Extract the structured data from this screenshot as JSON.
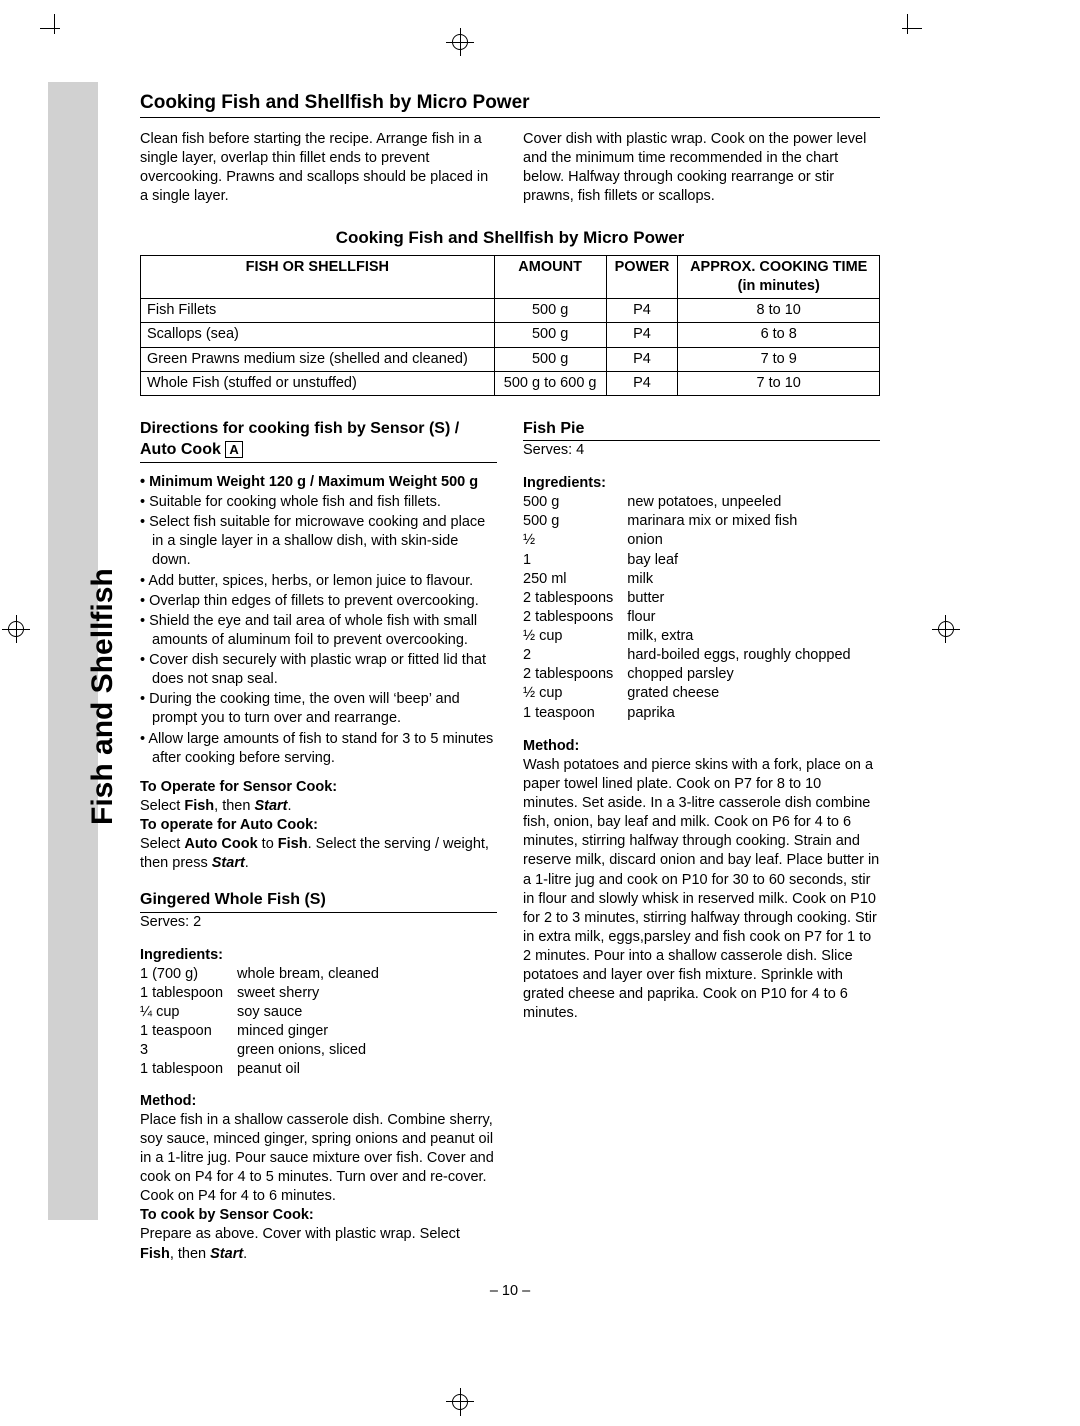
{
  "sidebar_label": "Fish and Shellfish",
  "page_number": "– 10 –",
  "section_title": "Cooking Fish and Shellfish by Micro Power",
  "intro_left": "Clean fish before starting the recipe. Arrange fish in a single layer, overlap thin fillet ends to prevent overcooking. Prawns and scallops should be placed in a single layer.",
  "intro_right": "Cover dish with plastic wrap. Cook on the power level and the minimum time recommended in the chart below. Halfway through cooking rearrange or stir prawns, fish fillets or scallops.",
  "table_title": "Cooking Fish and Shellfish by Micro Power",
  "table": {
    "headers": [
      "FISH OR SHELLFISH",
      "AMOUNT",
      "POWER",
      "APPROX. COOKING TIME (in minutes)"
    ],
    "rows": [
      [
        "Fish Fillets",
        "500 g",
        "P4",
        "8 to 10"
      ],
      [
        "Scallops (sea)",
        "500 g",
        "P4",
        "6 to 8"
      ],
      [
        "Green Prawns medium size (shelled and cleaned)",
        "500 g",
        "P4",
        "7 to 9"
      ],
      [
        "Whole Fish (stuffed or unstuffed)",
        "500 g to 600 g",
        "P4",
        "7 to 10"
      ]
    ]
  },
  "directions_heading": "Directions for cooking fish by Sensor (S) / Auto Cook ",
  "directions_badge": "A",
  "weight_line": "• Minimum Weight 120 g / Maximum Weight 500 g",
  "bullets": [
    "Suitable for cooking whole fish and fish fillets.",
    "Select fish suitable for microwave cooking and place in a single layer in a shallow dish, with skin-side down.",
    "Add butter, spices, herbs, or lemon juice to flavour.",
    "Overlap thin edges of fillets to prevent overcooking.",
    "Shield the eye and tail area of whole fish with small amounts of aluminum foil to prevent overcooking.",
    "Cover dish securely with plastic wrap or fitted lid that does not snap seal.",
    "During the cooking time, the oven will ‘beep’ and prompt you to turn over and rearrange.",
    "Allow large amounts of fish to stand for 3 to 5 minutes after cooking before serving."
  ],
  "operate_sensor_label": "To Operate for Sensor Cook:",
  "operate_sensor_text_pre": "Select ",
  "operate_sensor_fish": "Fish",
  "operate_sensor_mid": ", then ",
  "operate_sensor_start": "Start",
  "operate_sensor_post": ".",
  "operate_auto_label": "To operate for Auto Cook:",
  "operate_auto_text_pre": "Select ",
  "operate_auto_ac": "Auto Cook",
  "operate_auto_mid": " to ",
  "operate_auto_fish": "Fish",
  "operate_auto_post": ". Select the serving / weight, then press ",
  "operate_auto_start": "Start",
  "operate_auto_end": ".",
  "recipe1": {
    "title": "Gingered Whole Fish (S)",
    "serves": "Serves: 2",
    "ing_label": "Ingredients:",
    "ingredients": [
      [
        "1  (700 g)",
        "whole bream, cleaned"
      ],
      [
        "1 tablespoon",
        "sweet sherry"
      ],
      [
        "¼ cup",
        "soy sauce"
      ],
      [
        "1 teaspoon",
        "minced ginger"
      ],
      [
        "3",
        "green onions, sliced"
      ],
      [
        "1 tablespoon",
        "peanut oil"
      ]
    ],
    "method_label": "Method:",
    "method": "Place fish in a shallow casserole dish. Combine sherry, soy sauce, minced ginger, spring onions and peanut oil in a 1-litre jug. Pour sauce mixture over fish. Cover and cook on P4 for 4 to 5 minutes. Turn over and re-cover. Cook on P4 for 4 to 6 minutes.",
    "sensor_label": "To cook by Sensor Cook:",
    "sensor_text_pre": "Prepare as above. Cover with plastic wrap. Select ",
    "sensor_fish": "Fish",
    "sensor_mid": ", then ",
    "sensor_start": "Start",
    "sensor_post": "."
  },
  "recipe2": {
    "title": "Fish Pie",
    "serves": "Serves: 4",
    "ing_label": "Ingredients:",
    "ingredients": [
      [
        "500 g",
        "new potatoes, unpeeled"
      ],
      [
        "500 g",
        "marinara mix or mixed fish"
      ],
      [
        "½",
        "onion"
      ],
      [
        "1",
        "bay leaf"
      ],
      [
        "250 ml",
        "milk"
      ],
      [
        "2 tablespoons",
        "butter"
      ],
      [
        "2 tablespoons",
        "flour"
      ],
      [
        "½ cup",
        "milk, extra"
      ],
      [
        "2",
        "hard-boiled eggs, roughly chopped"
      ],
      [
        "2 tablespoons",
        "chopped parsley"
      ],
      [
        "½ cup",
        "grated cheese"
      ],
      [
        "1 teaspoon",
        "paprika"
      ]
    ],
    "method_label": "Method:",
    "method": "Wash potatoes and pierce skins with a fork, place on a paper towel lined plate. Cook on P7 for 8 to 10 minutes. Set aside. In a 3-litre casserole dish combine fish, onion, bay leaf and milk. Cook on P6 for 4 to 6 minutes, stirring halfway through cooking. Strain and reserve milk, discard onion and bay leaf. Place butter in a 1-litre jug and cook on P10 for 30 to 60 seconds, stir in flour and slowly whisk in reserved milk. Cook on P10 for 2 to 3 minutes, stirring halfway through cooking. Stir in extra milk, eggs,parsley and fish cook on P7 for 1 to 2 minutes. Pour into a shallow casserole dish. Slice potatoes and layer over fish mixture. Sprinkle with grated cheese and paprika. Cook on P10 for 4 to 6 minutes."
  }
}
